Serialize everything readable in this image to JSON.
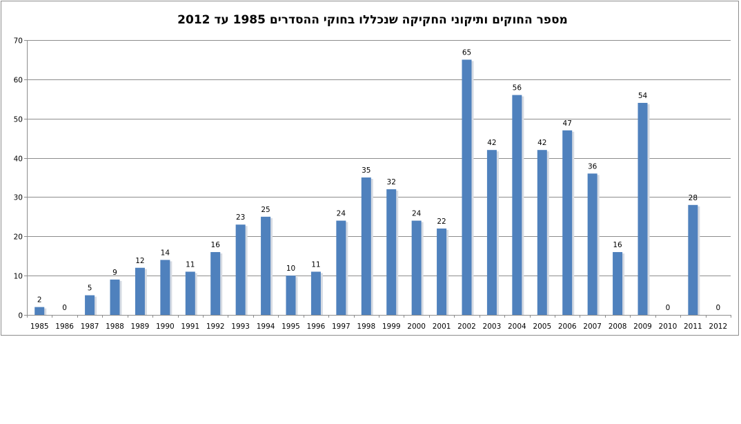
{
  "chart_data": {
    "type": "bar",
    "title": "מספר החוקים ותיקוני החקיקה שנכללו בחוקי ההסדרים  1985 עד 2012",
    "categories": [
      "1985",
      "1986",
      "1987",
      "1988",
      "1989",
      "1990",
      "1991",
      "1992",
      "1993",
      "1994",
      "1995",
      "1996",
      "1997",
      "1998",
      "1999",
      "2000",
      "2001",
      "2002",
      "2003",
      "2004",
      "2005",
      "2006",
      "2007",
      "2008",
      "2009",
      "2010",
      "2011",
      "2012"
    ],
    "values": [
      2,
      0,
      5,
      9,
      12,
      14,
      11,
      16,
      23,
      25,
      10,
      11,
      24,
      35,
      32,
      24,
      22,
      65,
      42,
      56,
      42,
      47,
      36,
      16,
      54,
      0,
      28,
      0
    ],
    "ylim": [
      0,
      70
    ],
    "yticks": [
      0,
      10,
      20,
      30,
      40,
      50,
      60,
      70
    ],
    "grid": true,
    "bar_color": "#4f81bd",
    "data_labels": true
  }
}
